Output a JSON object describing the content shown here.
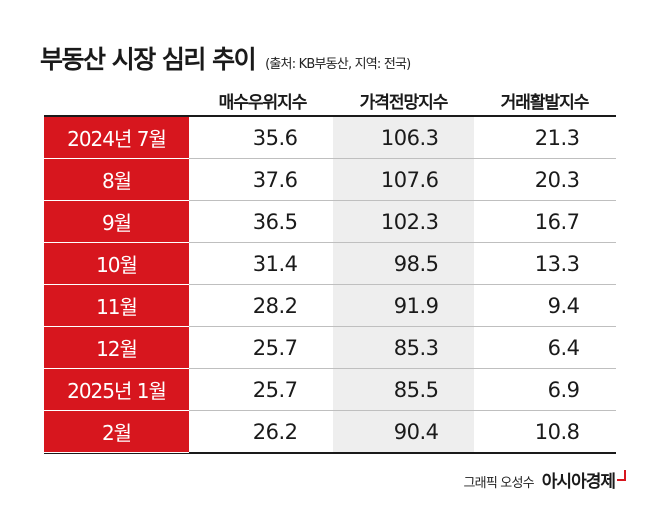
{
  "header": {
    "title": "부동산 시장 심리 추이",
    "source": "(출처: KB부동산, 지역: 전국)"
  },
  "chart_data": {
    "type": "table",
    "title": "부동산 시장 심리 추이",
    "columns": [
      "매수우위지수",
      "가격전망지수",
      "거래활발지수"
    ],
    "rows": [
      {
        "label": "2024년 7월",
        "values": [
          "35.6",
          "106.3",
          "21.3"
        ]
      },
      {
        "label": "8월",
        "values": [
          "37.6",
          "107.6",
          "20.3"
        ]
      },
      {
        "label": "9월",
        "values": [
          "36.5",
          "102.3",
          "16.7"
        ]
      },
      {
        "label": "10월",
        "values": [
          "31.4",
          "98.5",
          "13.3"
        ]
      },
      {
        "label": "11월",
        "values": [
          "28.2",
          "91.9",
          "9.4"
        ]
      },
      {
        "label": "12월",
        "values": [
          "25.7",
          "85.3",
          "6.4"
        ]
      },
      {
        "label": "2025년 1월",
        "values": [
          "25.7",
          "85.5",
          "6.9"
        ]
      },
      {
        "label": "2월",
        "values": [
          "26.2",
          "90.4",
          "10.8"
        ]
      }
    ]
  },
  "footer": {
    "credit": "그래픽 오성수",
    "brand": "아시아경제"
  },
  "colors": {
    "accent": "#d7161e",
    "shaded_column": "#eeeeee",
    "text": "#1a1a1a"
  }
}
